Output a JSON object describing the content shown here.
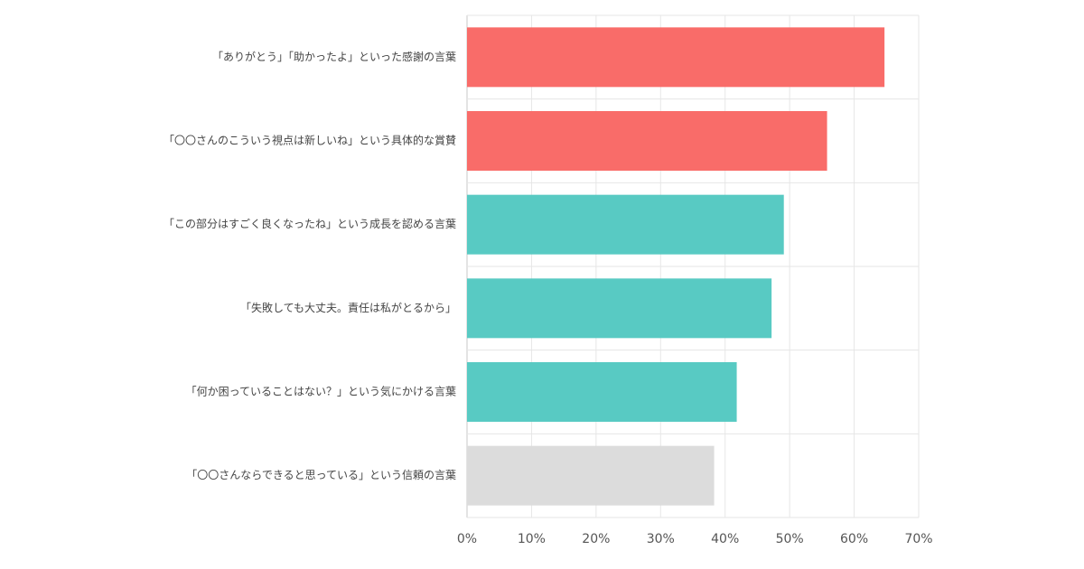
{
  "chart_data": {
    "type": "bar",
    "orientation": "horizontal",
    "categories": [
      "「ありがとう」「助かったよ」といった感謝の言葉",
      "「〇〇さんのこういう視点は新しいね」という具体的な賞賛",
      "「この部分はすごく良くなったね」という成長を認める言葉",
      "「失敗しても大丈夫。責任は私がとるから」",
      "「何か困っていることはない？」という気にかける言葉",
      "「〇〇さんならできると思っている」という信頼の言葉"
    ],
    "values": [
      64.7,
      55.8,
      49.1,
      47.2,
      41.8,
      38.3
    ],
    "colors": [
      "#f96c69",
      "#f96c69",
      "#58cac3",
      "#58cac3",
      "#58cac3",
      "#dcdcdc"
    ],
    "title": "",
    "xlabel": "",
    "ylabel": "",
    "xlim": [
      0,
      70
    ],
    "x_ticks": [
      0,
      10,
      20,
      30,
      40,
      50,
      60,
      70
    ],
    "x_tick_labels": [
      "0%",
      "10%",
      "20%",
      "30%",
      "40%",
      "50%",
      "60%",
      "70%"
    ],
    "grid": true,
    "legend": "none"
  }
}
